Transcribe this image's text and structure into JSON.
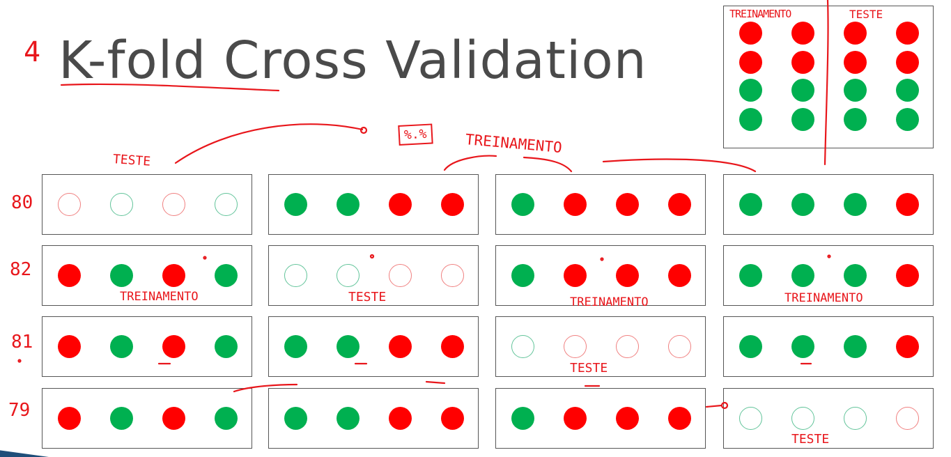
{
  "slide": {
    "title": "K-fold Cross Validation",
    "slide_number_note": "4"
  },
  "annotations": {
    "teste_top": "TESTE",
    "percent_box": "%.%",
    "treinamento_top": "TREINAMENTO",
    "treinamento_row2_col1": "TREINAMENTO",
    "teste_row2_col2": "TESTE",
    "treinamento_row2_col3": "TREINAMENTO",
    "treinamento_row2_col4": "TREINAMENTO",
    "teste_row3_col3": "TESTE",
    "teste_row4_col4": "TESTE"
  },
  "legend": {
    "train_label": "TREINAMENTO",
    "test_label": "TESTE",
    "rows": [
      [
        "red",
        "red",
        "red",
        "red"
      ],
      [
        "red",
        "red",
        "red",
        "red"
      ],
      [
        "green",
        "green",
        "green",
        "green"
      ],
      [
        "green",
        "green",
        "green",
        "green"
      ]
    ]
  },
  "scores": [
    "80",
    "82",
    "81",
    "79"
  ],
  "folds": [
    [
      [
        "open-red",
        "open-green",
        "open-red",
        "open-green"
      ],
      [
        "fill-green",
        "fill-green",
        "fill-red",
        "fill-red"
      ],
      [
        "fill-green",
        "fill-red",
        "fill-red",
        "fill-red"
      ],
      [
        "fill-green",
        "fill-green",
        "fill-green",
        "fill-red"
      ]
    ],
    [
      [
        "fill-red",
        "fill-green",
        "fill-red",
        "fill-green"
      ],
      [
        "open-green",
        "open-green",
        "open-red",
        "open-red"
      ],
      [
        "fill-green",
        "fill-red",
        "fill-red",
        "fill-red"
      ],
      [
        "fill-green",
        "fill-green",
        "fill-green",
        "fill-red"
      ]
    ],
    [
      [
        "fill-red",
        "fill-green",
        "fill-red",
        "fill-green"
      ],
      [
        "fill-green",
        "fill-green",
        "fill-red",
        "fill-red"
      ],
      [
        "open-green",
        "open-red",
        "open-red",
        "open-red"
      ],
      [
        "fill-green",
        "fill-green",
        "fill-green",
        "fill-red"
      ]
    ],
    [
      [
        "fill-red",
        "fill-green",
        "fill-red",
        "fill-green"
      ],
      [
        "fill-green",
        "fill-green",
        "fill-red",
        "fill-red"
      ],
      [
        "fill-green",
        "fill-red",
        "fill-red",
        "fill-red"
      ],
      [
        "open-green",
        "open-green",
        "open-green",
        "open-red"
      ]
    ]
  ],
  "colors": {
    "red": "#ff0000",
    "green": "#00b050",
    "annotation": "#e8161b"
  }
}
